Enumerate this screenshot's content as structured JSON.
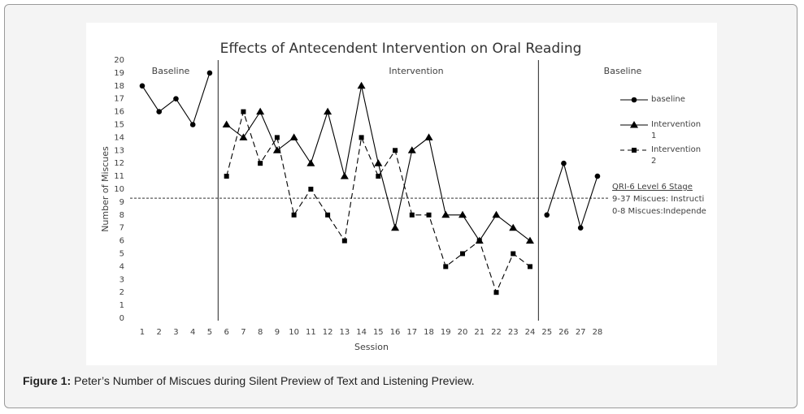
{
  "chart_data": {
    "type": "line",
    "title": "Effects of Antecendent Intervention on Oral Reading",
    "xlabel": "Session",
    "ylabel": "Number of Miscues",
    "x": [
      1,
      2,
      3,
      4,
      5,
      6,
      7,
      8,
      9,
      10,
      11,
      12,
      13,
      14,
      15,
      16,
      17,
      18,
      19,
      20,
      21,
      22,
      23,
      24,
      25,
      26,
      27,
      28
    ],
    "xlim": [
      0.5,
      28.5
    ],
    "xticks": [
      1,
      2,
      3,
      4,
      5,
      6,
      7,
      8,
      9,
      10,
      11,
      12,
      13,
      14,
      15,
      16,
      17,
      18,
      19,
      20,
      21,
      22,
      23,
      24,
      25,
      26,
      27,
      28
    ],
    "ylim": [
      0,
      20
    ],
    "yticks": [
      0,
      1,
      2,
      3,
      4,
      5,
      6,
      7,
      8,
      9,
      10,
      11,
      12,
      13,
      14,
      15,
      16,
      17,
      18,
      19,
      20
    ],
    "series": [
      {
        "name": "baseline",
        "color": "#000000",
        "marker": "circle",
        "dash": false,
        "values": [
          18,
          16,
          17,
          15,
          19,
          null,
          null,
          null,
          null,
          null,
          null,
          null,
          null,
          null,
          null,
          null,
          null,
          null,
          null,
          null,
          null,
          null,
          null,
          null,
          8,
          12,
          7,
          11
        ]
      },
      {
        "name": "Intervention 1",
        "color": "#000000",
        "marker": "triangle",
        "dash": false,
        "values": [
          null,
          null,
          null,
          null,
          null,
          15,
          14,
          16,
          13,
          14,
          12,
          16,
          11,
          18,
          12,
          7,
          13,
          14,
          8,
          8,
          6,
          8,
          7,
          6,
          null,
          null,
          null,
          null
        ]
      },
      {
        "name": "Intervention 2",
        "color": "#000000",
        "marker": "square",
        "dash": true,
        "values": [
          null,
          null,
          null,
          null,
          null,
          11,
          16,
          12,
          14,
          8,
          10,
          8,
          6,
          14,
          11,
          13,
          8,
          8,
          4,
          5,
          6,
          2,
          5,
          4,
          null,
          null,
          null,
          null
        ]
      }
    ],
    "phase_lines": [
      5.5,
      24.5
    ],
    "criterion_line": 9.3,
    "phase_labels": [
      "Baseline",
      "Intervention",
      "Baseline"
    ],
    "criterion_notes": [
      "QRI-6 Level 6 Stage",
      "9-37 Miscues: Instructi",
      "0-8 Miscues:Independe"
    ],
    "legend": "right"
  },
  "caption": {
    "label": "Figure 1:",
    "text": "Peter’s Number of Miscues during Silent Preview of Text and Listening Preview."
  }
}
